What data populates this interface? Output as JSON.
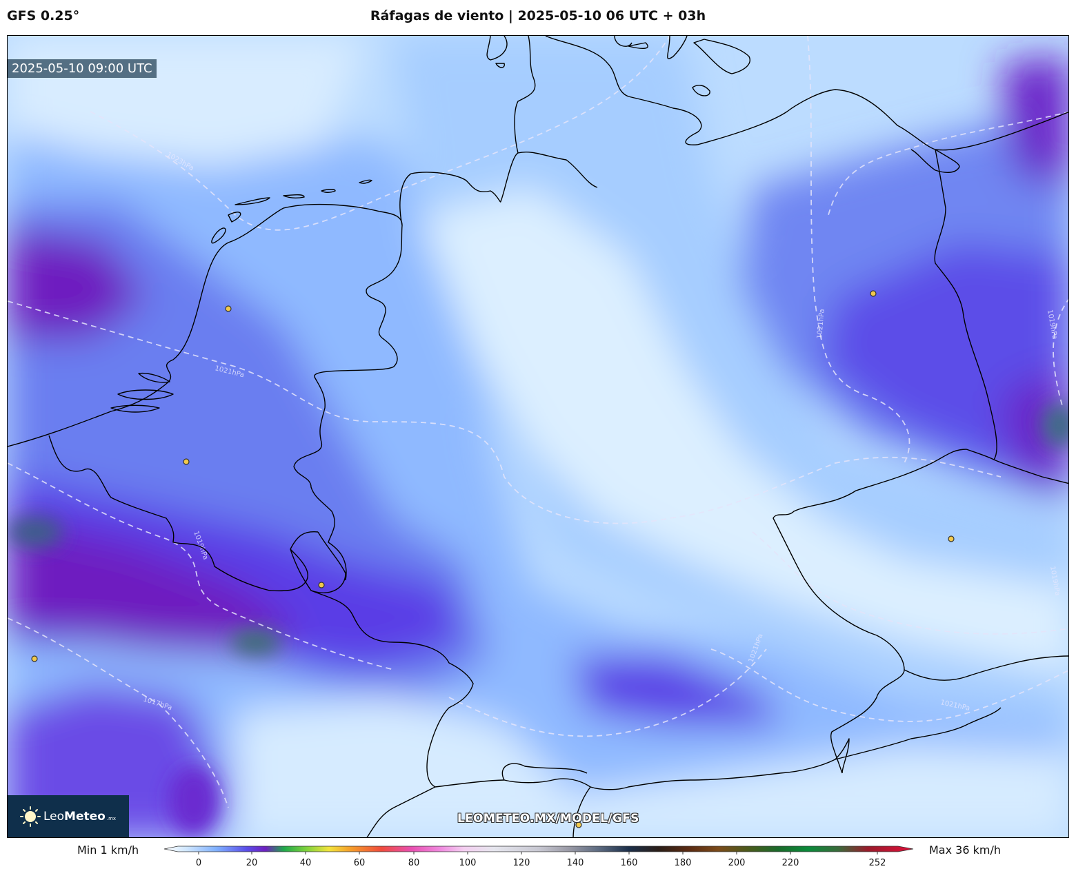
{
  "header": {
    "model_label": "GFS 0.25°",
    "title": "Ráfagas de viento | 2025-05-10 06 UTC + 03h"
  },
  "map": {
    "valid_time": "2025-05-10 09:00 UTC",
    "isobar_labels": [
      "1023hPa",
      "1021hPa",
      "1021hPa",
      "1019hPa",
      "1019hPa",
      "1017hPa",
      "1021hPa",
      "1021hPa",
      "1019hPa"
    ],
    "watermark": "LEOMETEO.MX/MODEL/GFS",
    "logo": {
      "name_light": "Leo",
      "name_bold": "Meteo",
      "suffix": ".mx"
    },
    "colors": {
      "calm": "#d6ebff",
      "light": "#9cc8ff",
      "moderate": "#6a8cf5",
      "strong": "#5a3ee6",
      "very_strong": "#6e1fc0",
      "peak": "#3d6b7a",
      "coastline": "#000000",
      "isobar": "#e8e8f8",
      "city_marker": "#f2c94c"
    }
  },
  "colorbar": {
    "min_label": "Min 1 km/h",
    "max_label": "Max 36 km/h",
    "ticks": [
      "0",
      "20",
      "40",
      "60",
      "80",
      "100",
      "120",
      "140",
      "160",
      "180",
      "200",
      "220",
      "252"
    ]
  }
}
